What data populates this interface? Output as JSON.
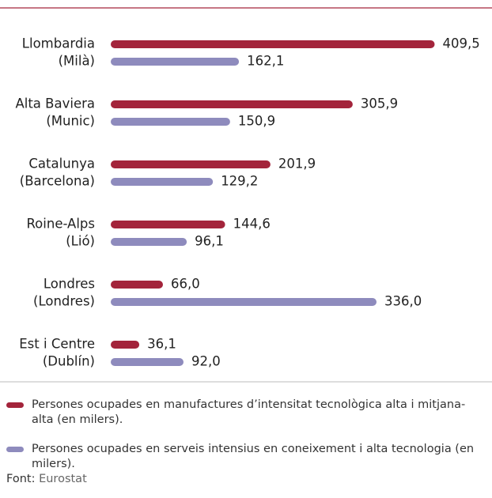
{
  "chart_data": {
    "type": "bar",
    "orientation": "horizontal",
    "categories": [
      [
        "Llombardia",
        "(Milà)"
      ],
      [
        "Alta Baviera",
        "(Munic)"
      ],
      [
        "Catalunya",
        "(Barcelona)"
      ],
      [
        "Roine-Alps",
        "(Lió)"
      ],
      [
        "Londres",
        "(Londres)"
      ],
      [
        "Est i Centre",
        "(Dublín)"
      ]
    ],
    "series": [
      {
        "name": "Persones ocupades en manufactures d’intensitat tecnològica alta i mitjana-alta (en milers).",
        "color": "#a3243b",
        "values": [
          409.5,
          305.9,
          201.9,
          144.6,
          66.0,
          36.1
        ],
        "value_labels": [
          "409,5",
          "305,9",
          "201,9",
          "144,6",
          "66,0",
          "36,1"
        ]
      },
      {
        "name": "Persones ocupades en serveis intensius en coneixement i alta tecnologia (en milers).",
        "color": "#8e8bbd",
        "values": [
          162.1,
          150.9,
          129.2,
          96.1,
          336.0,
          92.0
        ],
        "value_labels": [
          "162,1",
          "150,9",
          "129,2",
          "96,1",
          "336,0",
          "92,0"
        ]
      }
    ],
    "source_label": "Font:",
    "source": "Eurostat"
  }
}
